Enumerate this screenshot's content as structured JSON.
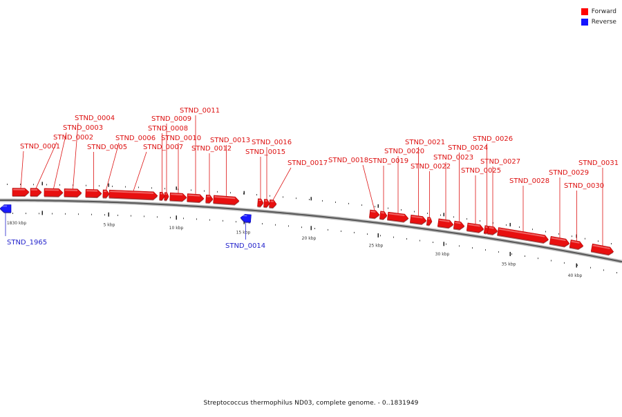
{
  "legend": {
    "forward_label": "Forward",
    "reverse_label": "Reverse",
    "forward_color": "#ff0000",
    "reverse_color": "#1414ff"
  },
  "caption": "Streptococcus thermophilus ND03, complete genome. - 0..1831949",
  "colors": {
    "forward": "#e81010",
    "reverse": "#1a1aff",
    "forward_label": "#dd1111",
    "reverse_label": "#2222cc"
  },
  "scale_labels": [
    "1830 kbp",
    "5 kbp",
    "10 kbp",
    "15 kbp",
    "20 kbp",
    "25 kbp",
    "30 kbp",
    "35 kbp",
    "40 kbp"
  ],
  "genes": [
    {
      "name": "STND_1965",
      "strand": "reverse"
    },
    {
      "name": "STND_0001",
      "strand": "forward"
    },
    {
      "name": "STND_0002",
      "strand": "forward"
    },
    {
      "name": "STND_0003",
      "strand": "forward"
    },
    {
      "name": "STND_0004",
      "strand": "forward"
    },
    {
      "name": "STND_0005",
      "strand": "forward"
    },
    {
      "name": "STND_0006",
      "strand": "forward"
    },
    {
      "name": "STND_0007",
      "strand": "forward"
    },
    {
      "name": "STND_0008",
      "strand": "forward"
    },
    {
      "name": "STND_0009",
      "strand": "forward"
    },
    {
      "name": "STND_0010",
      "strand": "forward"
    },
    {
      "name": "STND_0011",
      "strand": "forward"
    },
    {
      "name": "STND_0012",
      "strand": "forward"
    },
    {
      "name": "STND_0013",
      "strand": "forward"
    },
    {
      "name": "STND_0014",
      "strand": "reverse"
    },
    {
      "name": "STND_0015",
      "strand": "forward"
    },
    {
      "name": "STND_0016",
      "strand": "forward"
    },
    {
      "name": "STND_0017",
      "strand": "forward"
    },
    {
      "name": "STND_0018",
      "strand": "forward"
    },
    {
      "name": "STND_0019",
      "strand": "forward"
    },
    {
      "name": "STND_0020",
      "strand": "forward"
    },
    {
      "name": "STND_0021",
      "strand": "forward"
    },
    {
      "name": "STND_0022",
      "strand": "forward"
    },
    {
      "name": "STND_0023",
      "strand": "forward"
    },
    {
      "name": "STND_0024",
      "strand": "forward"
    },
    {
      "name": "STND_0025",
      "strand": "forward"
    },
    {
      "name": "STND_0026",
      "strand": "forward"
    },
    {
      "name": "STND_0027",
      "strand": "forward"
    },
    {
      "name": "STND_0028",
      "strand": "forward"
    },
    {
      "name": "STND_0029",
      "strand": "forward"
    },
    {
      "name": "STND_0030",
      "strand": "forward"
    },
    {
      "name": "STND_0031",
      "strand": "forward"
    }
  ]
}
